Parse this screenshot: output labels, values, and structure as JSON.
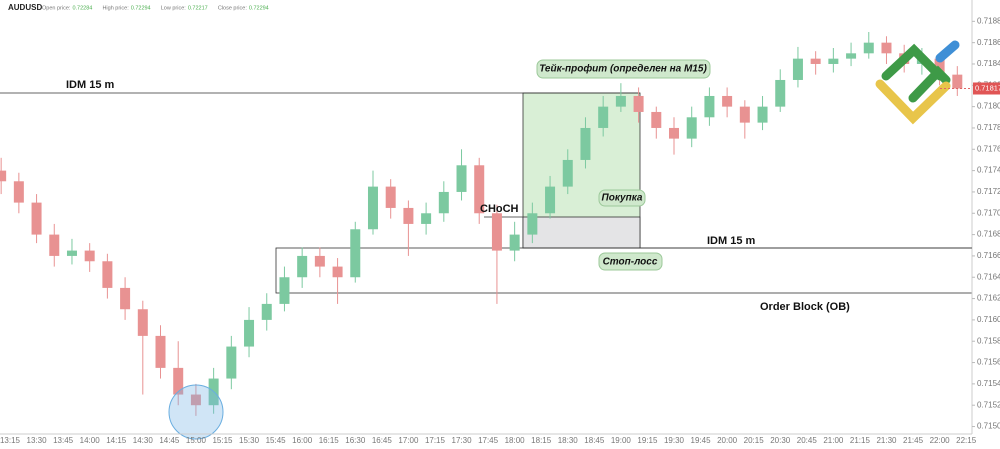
{
  "header": {
    "symbol": "AUDUSD",
    "stats": [
      {
        "label": "Open price:",
        "value": "0.72284"
      },
      {
        "label": "High price:",
        "value": "0.72294"
      },
      {
        "label": "Low price:",
        "value": "0.72217"
      },
      {
        "label": "Close price:",
        "value": "0.72294"
      }
    ]
  },
  "chart_data": {
    "type": "candlestick",
    "x": [
      "13:10",
      "13:20",
      "13:30",
      "13:40",
      "13:50",
      "14:00",
      "14:10",
      "14:20",
      "14:30",
      "14:40",
      "14:50",
      "15:00",
      "15:10",
      "15:20",
      "15:30",
      "15:40",
      "15:50",
      "16:00",
      "16:10",
      "16:20",
      "16:30",
      "16:40",
      "16:50",
      "17:00",
      "17:10",
      "17:20",
      "17:30",
      "17:40",
      "17:50",
      "18:00",
      "18:10",
      "18:20",
      "18:30",
      "18:40",
      "18:50",
      "19:00",
      "19:10",
      "19:20",
      "19:30",
      "19:40",
      "19:50",
      "20:00",
      "20:10",
      "20:20",
      "20:30",
      "20:40",
      "20:50",
      "21:00",
      "21:10",
      "21:20",
      "21:30",
      "21:40",
      "21:50",
      "22:00",
      "22:10"
    ],
    "open": [
      0.7174,
      0.7173,
      0.7171,
      0.7168,
      0.7166,
      0.71665,
      0.71655,
      0.7163,
      0.7161,
      0.71585,
      0.71555,
      0.7153,
      0.7152,
      0.71545,
      0.71575,
      0.716,
      0.71615,
      0.7164,
      0.7166,
      0.7165,
      0.7164,
      0.71685,
      0.71725,
      0.71705,
      0.7169,
      0.717,
      0.7172,
      0.71745,
      0.717,
      0.71665,
      0.7168,
      0.717,
      0.71725,
      0.7175,
      0.7178,
      0.718,
      0.7181,
      0.71795,
      0.7178,
      0.7177,
      0.7179,
      0.7181,
      0.718,
      0.71785,
      0.718,
      0.71825,
      0.71845,
      0.7184,
      0.71845,
      0.7185,
      0.7186,
      0.7185,
      0.7184,
      0.71845,
      0.7183
    ],
    "high": [
      0.71752,
      0.71738,
      0.71718,
      0.7169,
      0.71676,
      0.71672,
      0.71662,
      0.7164,
      0.71618,
      0.71595,
      0.7158,
      0.7154,
      0.71555,
      0.71585,
      0.71612,
      0.71625,
      0.7165,
      0.71668,
      0.71668,
      0.71658,
      0.71692,
      0.7174,
      0.71732,
      0.71712,
      0.7171,
      0.7173,
      0.7176,
      0.71752,
      0.71708,
      0.71692,
      0.7171,
      0.71735,
      0.7176,
      0.7179,
      0.7181,
      0.71822,
      0.71818,
      0.718,
      0.7179,
      0.718,
      0.71818,
      0.71818,
      0.71806,
      0.7181,
      0.71835,
      0.71856,
      0.71852,
      0.71855,
      0.7186,
      0.7187,
      0.71866,
      0.71858,
      0.71855,
      0.7185,
      0.71838
    ],
    "low": [
      0.71718,
      0.717,
      0.71672,
      0.7165,
      0.71652,
      0.71645,
      0.7162,
      0.716,
      0.7153,
      0.71545,
      0.7152,
      0.7151,
      0.71512,
      0.71535,
      0.71565,
      0.7159,
      0.71608,
      0.7163,
      0.7164,
      0.71615,
      0.71635,
      0.7168,
      0.71695,
      0.7166,
      0.7168,
      0.71692,
      0.71712,
      0.7169,
      0.71615,
      0.71655,
      0.71672,
      0.71695,
      0.71718,
      0.71742,
      0.71772,
      0.71795,
      0.71785,
      0.7177,
      0.71755,
      0.71762,
      0.71782,
      0.7179,
      0.7177,
      0.71778,
      0.71795,
      0.71818,
      0.7183,
      0.71832,
      0.71838,
      0.71845,
      0.7184,
      0.71832,
      0.7183,
      0.7182,
      0.7181
    ],
    "close": [
      0.7173,
      0.7171,
      0.7168,
      0.7166,
      0.71665,
      0.71655,
      0.7163,
      0.7161,
      0.71585,
      0.71555,
      0.7153,
      0.7152,
      0.71545,
      0.71575,
      0.716,
      0.71615,
      0.7164,
      0.7166,
      0.7165,
      0.7164,
      0.71685,
      0.71725,
      0.71705,
      0.7169,
      0.717,
      0.7172,
      0.71745,
      0.717,
      0.71665,
      0.7168,
      0.717,
      0.71725,
      0.7175,
      0.7178,
      0.718,
      0.7181,
      0.71795,
      0.7178,
      0.7177,
      0.7179,
      0.7181,
      0.718,
      0.71785,
      0.718,
      0.71825,
      0.71845,
      0.7184,
      0.71845,
      0.7185,
      0.7186,
      0.7185,
      0.7184,
      0.71845,
      0.7183,
      0.71817
    ],
    "up_color": "#7cc9a0",
    "down_color": "#e89292",
    "ylim": [
      0.71493,
      0.719
    ],
    "yticks": [
      {
        "value": 0.715,
        "label": "0.71500"
      },
      {
        "value": 0.7152,
        "label": "0.71520"
      },
      {
        "value": 0.7154,
        "label": "0.71540"
      },
      {
        "value": 0.7156,
        "label": "0.71560"
      },
      {
        "value": 0.7158,
        "label": "0.71580"
      },
      {
        "value": 0.716,
        "label": "0.71600"
      },
      {
        "value": 0.7162,
        "label": "0.71620"
      },
      {
        "value": 0.7164,
        "label": "0.71640"
      },
      {
        "value": 0.7166,
        "label": "0.71660"
      },
      {
        "value": 0.7168,
        "label": "0.71680"
      },
      {
        "value": 0.717,
        "label": "0.71700"
      },
      {
        "value": 0.7172,
        "label": "0.71720"
      },
      {
        "value": 0.7174,
        "label": "0.71740"
      },
      {
        "value": 0.7176,
        "label": "0.71760"
      },
      {
        "value": 0.7178,
        "label": "0.71780"
      },
      {
        "value": 0.718,
        "label": "0.71800"
      },
      {
        "value": 0.7182,
        "label": "0.71820"
      },
      {
        "value": 0.7184,
        "label": "0.71840"
      },
      {
        "value": 0.7186,
        "label": "0.71860"
      },
      {
        "value": 0.7188,
        "label": "0.71880"
      }
    ],
    "xticks": [
      "13:15",
      "13:30",
      "13:45",
      "14:00",
      "14:15",
      "14:30",
      "14:45",
      "15:00",
      "15:15",
      "15:30",
      "15:45",
      "16:00",
      "16:15",
      "16:30",
      "16:45",
      "17:00",
      "17:15",
      "17:30",
      "17:45",
      "18:00",
      "18:15",
      "18:30",
      "18:45",
      "19:00",
      "19:15",
      "19:30",
      "19:45",
      "20:00",
      "20:15",
      "20:30",
      "20:45",
      "21:00",
      "21:15",
      "21:30",
      "21:45",
      "22:00",
      "22:15"
    ],
    "last_price": {
      "value": 0.71817,
      "label": "0.71817"
    },
    "grid": false,
    "annotations": {
      "idm_top": "IDM 15 m",
      "take_profit": "Тейк-профит (определен на M15)",
      "choch": "CHoCH",
      "buy": "Покупка",
      "idm_bottom": "IDM 15 m",
      "stop_loss": "Стоп-лосс",
      "order_block": "Order Block (OB)"
    }
  }
}
